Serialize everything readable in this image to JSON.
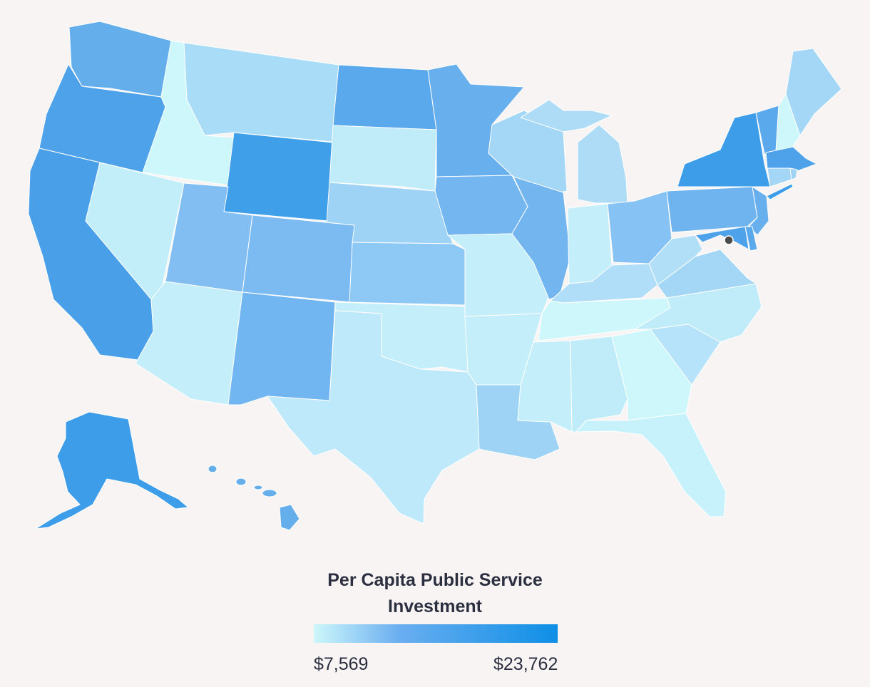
{
  "legend": {
    "title_line1": "Per Capita Public Service",
    "title_line2": "Investment",
    "min_label": "$7,569",
    "max_label": "$23,762",
    "min_value": 7569,
    "max_value": 23762,
    "color_low": "#cdf7fb",
    "color_mid": "#6aaef0",
    "color_high": "#0e8fe6"
  },
  "map": {
    "background": "#f8f4f4",
    "marker": "dc-marker"
  }
}
